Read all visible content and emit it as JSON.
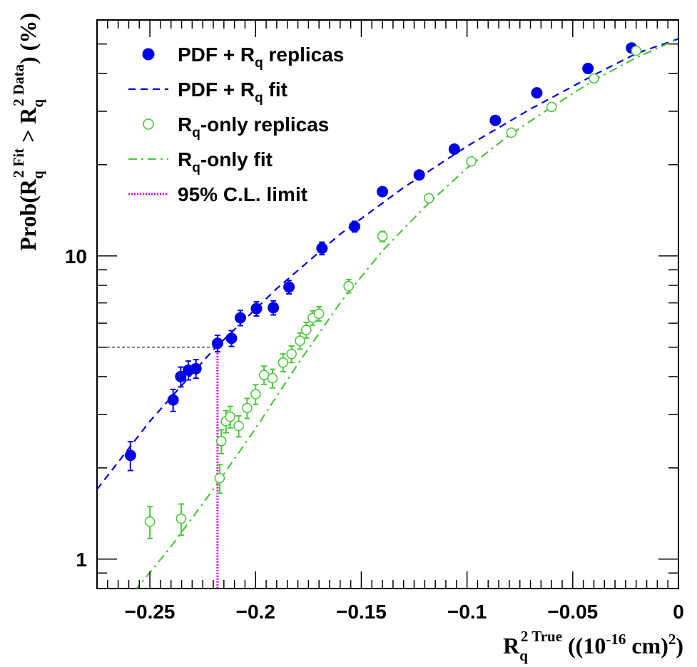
{
  "chart_data": {
    "type": "scatter",
    "xscale": "linear",
    "yscale": "log",
    "xlim": [
      -0.275,
      0
    ],
    "ylim": [
      0.8,
      60
    ],
    "xticks": [
      -0.25,
      -0.2,
      -0.15,
      -0.1,
      -0.05,
      0
    ],
    "xtick_labels": [
      "−0.25",
      "−0.2",
      "−0.15",
      "−0.1",
      "−0.05",
      "0"
    ],
    "yticks": [
      1,
      10
    ],
    "ytick_labels": [
      "1",
      "10"
    ],
    "grid": false,
    "legend_position": "top-left",
    "xlabel": {
      "main": "R",
      "sub": "q",
      "sup": "2 True",
      "units_prefix": " ((10",
      "units_exp": "-16",
      "units_mid": " cm)",
      "units_exp2": "2",
      "units_suffix": ")"
    },
    "ylabel": {
      "p1": "Prob(R",
      "sub1": "q",
      "sup1": "2 Fit",
      "p2": " > R",
      "sub2": "q",
      "sup2": "2 Data",
      "p3": ") (%)"
    },
    "series": [
      {
        "name": "PDF + R_q replicas",
        "legend": {
          "main": "PDF + R",
          "sub": "q",
          "tail": " replicas"
        },
        "style": "filled-marker",
        "color": "#0000e6",
        "x": [
          -0.2592,
          -0.239,
          -0.2354,
          -0.2318,
          -0.2282,
          -0.218,
          -0.2114,
          -0.2072,
          -0.1996,
          -0.1916,
          -0.1842,
          -0.1686,
          -0.1532,
          -0.14,
          -0.1226,
          -0.106,
          -0.0866,
          -0.067,
          -0.0428,
          -0.0222
        ],
        "y": [
          2.2,
          3.35,
          4.0,
          4.2,
          4.25,
          5.15,
          5.35,
          6.25,
          6.7,
          6.75,
          7.9,
          10.6,
          12.5,
          16.3,
          18.5,
          22.5,
          28.0,
          34.5,
          41.5,
          48.5
        ],
        "err": [
          0.24,
          0.28,
          0.3,
          0.3,
          0.3,
          0.32,
          0.32,
          0.36,
          0.36,
          0.36,
          0.4,
          0.5,
          0.5,
          0.5,
          0.5,
          0.55,
          0.6,
          0.7,
          0.8,
          0.9
        ]
      },
      {
        "name": "PDF + R_q fit",
        "legend": {
          "main": "PDF + R",
          "sub": "q",
          "tail": " fit"
        },
        "style": "dashed-line",
        "color": "#0000e6",
        "x": [
          -0.275,
          -0.25,
          -0.22,
          -0.19,
          -0.16,
          -0.13,
          -0.1,
          -0.07,
          -0.04,
          -0.02,
          0
        ],
        "y": [
          1.7,
          2.85,
          4.9,
          7.8,
          11.8,
          16.8,
          23.0,
          30.5,
          39.5,
          46.5,
          52.0
        ]
      },
      {
        "name": "R_q-only replicas",
        "legend": {
          "main": "R",
          "sub": "q",
          "tail": "-only replicas"
        },
        "style": "open-marker",
        "color": "#4cc73c",
        "x": [
          -0.25,
          -0.2352,
          -0.217,
          -0.2162,
          -0.214,
          -0.212,
          -0.208,
          -0.204,
          -0.2,
          -0.196,
          -0.192,
          -0.187,
          -0.183,
          -0.179,
          -0.176,
          -0.173,
          -0.17,
          -0.156,
          -0.14,
          -0.118,
          -0.098,
          -0.079,
          -0.06,
          -0.04,
          -0.02
        ],
        "y": [
          1.33,
          1.36,
          1.85,
          2.45,
          2.85,
          2.95,
          2.75,
          3.15,
          3.5,
          4.05,
          3.95,
          4.45,
          4.75,
          5.25,
          5.7,
          6.25,
          6.45,
          7.95,
          11.6,
          15.5,
          20.5,
          25.5,
          31.0,
          38.5,
          47.5
        ],
        "err": [
          0.16,
          0.16,
          0.2,
          0.22,
          0.24,
          0.24,
          0.22,
          0.24,
          0.26,
          0.28,
          0.28,
          0.3,
          0.3,
          0.32,
          0.34,
          0.34,
          0.35,
          0.4,
          0.45,
          0.45,
          0.5,
          0.55,
          0.6,
          0.7,
          0.8
        ]
      },
      {
        "name": "R_q-only fit",
        "legend": {
          "main": "R",
          "sub": "q",
          "tail": "-only fit"
        },
        "style": "dashdot-line",
        "color": "#4cc73c",
        "x": [
          -0.2575,
          -0.24,
          -0.22,
          -0.2,
          -0.18,
          -0.16,
          -0.14,
          -0.12,
          -0.1,
          -0.08,
          -0.06,
          -0.04,
          -0.02,
          0
        ],
        "y": [
          0.78,
          1.1,
          1.7,
          2.7,
          4.4,
          7.0,
          10.4,
          14.5,
          19.5,
          25.0,
          31.0,
          38.0,
          45.0,
          52.0
        ]
      },
      {
        "name": "95% C.L. limit",
        "legend": {
          "main": "95% C.L. limit",
          "sub": "",
          "tail": ""
        },
        "style": "dotted-vline",
        "color": "#e000e0",
        "x_value": -0.218,
        "y_value": 5.0
      }
    ]
  }
}
